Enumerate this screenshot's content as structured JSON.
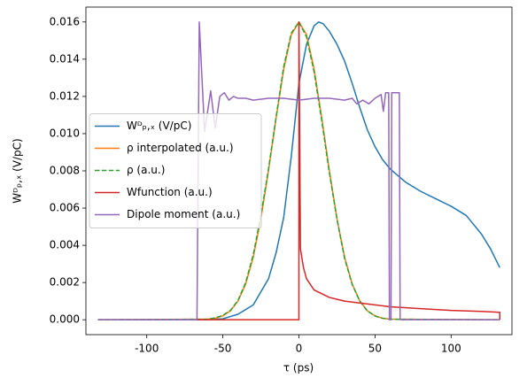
{
  "chart_data": {
    "type": "line",
    "xlabel": "τ (ps)",
    "ylabel": "Wᴰₚ,ₓ (V/pC)",
    "xlim": [
      -140,
      140
    ],
    "xticks": [
      -100,
      -50,
      0,
      50,
      100
    ],
    "ylim": [
      -0.0008,
      0.0168
    ],
    "yticks": [
      {
        "value": 0,
        "label": "0.000"
      },
      {
        "value": 0.002,
        "label": "0.002"
      },
      {
        "value": 0.004,
        "label": "0.004"
      },
      {
        "value": 0.006,
        "label": "0.006"
      },
      {
        "value": 0.008,
        "label": "0.008"
      },
      {
        "value": 0.01,
        "label": "0.010"
      },
      {
        "value": 0.012,
        "label": "0.012"
      },
      {
        "value": 0.014,
        "label": "0.014"
      },
      {
        "value": 0.016,
        "label": "0.016"
      }
    ],
    "legend": "center left",
    "series": [
      {
        "name": "Wᴰₚ,ₓ (V/pC)",
        "color": "#1f77b4",
        "x": [
          -132,
          -70,
          -60,
          -50,
          -40,
          -30,
          -20,
          -15,
          -10,
          -5,
          0,
          5,
          10,
          13,
          16,
          20,
          25,
          30,
          35,
          40,
          45,
          50,
          55,
          60,
          70,
          80,
          90,
          100,
          110,
          120,
          126,
          132
        ],
        "values": [
          0,
          0,
          1e-05,
          5e-05,
          0.0003,
          0.0008,
          0.0022,
          0.0036,
          0.0055,
          0.0088,
          0.0127,
          0.0148,
          0.0158,
          0.016,
          0.0159,
          0.0155,
          0.0148,
          0.0139,
          0.0127,
          0.0114,
          0.0102,
          0.0093,
          0.0086,
          0.0081,
          0.0074,
          0.0069,
          0.0065,
          0.0061,
          0.0056,
          0.0046,
          0.0038,
          0.0028
        ]
      },
      {
        "name": "ρ interpolated (a.u.)",
        "color": "#ff7f0e",
        "x": [
          -132,
          -60,
          -55,
          -50,
          -45,
          -40,
          -35,
          -30,
          -25,
          -20,
          -15,
          -10,
          -5,
          0,
          5,
          10,
          15,
          20,
          25,
          30,
          35,
          40,
          45,
          50,
          55,
          60,
          132
        ],
        "values": [
          0,
          3e-05,
          8e-05,
          0.00021,
          0.00048,
          0.00101,
          0.00192,
          0.00337,
          0.00543,
          0.00801,
          0.01084,
          0.01346,
          0.01532,
          0.016,
          0.01532,
          0.01346,
          0.01084,
          0.00801,
          0.00543,
          0.00337,
          0.00192,
          0.00101,
          0.00048,
          0.00021,
          8e-05,
          3e-05,
          0
        ]
      },
      {
        "name": "ρ (a.u.)",
        "color": "#2ca02c",
        "linestyle": "dashed",
        "x": [
          -132,
          -60,
          -55,
          -50,
          -45,
          -40,
          -35,
          -30,
          -25,
          -20,
          -15,
          -10,
          -5,
          0,
          5,
          10,
          15,
          20,
          25,
          30,
          35,
          40,
          45,
          50,
          55,
          60,
          132
        ],
        "values": [
          0,
          3e-05,
          0.0001,
          0.00024,
          0.0005,
          0.00105,
          0.002,
          0.0035,
          0.0056,
          0.0081,
          0.0109,
          0.0136,
          0.0154,
          0.016,
          0.0152,
          0.0133,
          0.0107,
          0.0079,
          0.0054,
          0.0033,
          0.0019,
          0.001,
          0.00047,
          0.0002,
          8e-05,
          3e-05,
          0
        ]
      },
      {
        "name": "Wfunction (a.u.)",
        "color": "#d62728",
        "x": [
          -68,
          0,
          0,
          1,
          3,
          5,
          10,
          20,
          30,
          40,
          60,
          80,
          100,
          120,
          132,
          132
        ],
        "values": [
          0,
          0,
          0.016,
          0.0038,
          0.0028,
          0.0022,
          0.0016,
          0.0012,
          0.001,
          0.0009,
          0.0007,
          0.0006,
          0.0005,
          0.00045,
          0.0004,
          0
        ]
      },
      {
        "name": "Dipole moment (a.u.)",
        "color": "#9467bd",
        "x": [
          -132,
          -67,
          -65.5,
          -62,
          -58,
          -55,
          -52,
          -49,
          -46,
          -43,
          -40,
          -35,
          -30,
          -20,
          -10,
          0,
          10,
          20,
          30,
          35,
          38,
          42,
          46,
          50,
          54,
          55.5,
          57,
          59,
          59.5,
          60.5,
          61,
          66,
          66.5,
          132
        ],
        "values": [
          0,
          0,
          0.016,
          0.0101,
          0.0123,
          0.0103,
          0.012,
          0.0122,
          0.0118,
          0.012,
          0.0119,
          0.0119,
          0.0118,
          0.0119,
          0.0119,
          0.0118,
          0.0119,
          0.0119,
          0.0118,
          0.0119,
          0.0116,
          0.0118,
          0.0116,
          0.0119,
          0.0121,
          0.0112,
          0.0122,
          0.0122,
          0,
          0,
          0.0122,
          0.0122,
          0,
          0
        ]
      }
    ]
  }
}
